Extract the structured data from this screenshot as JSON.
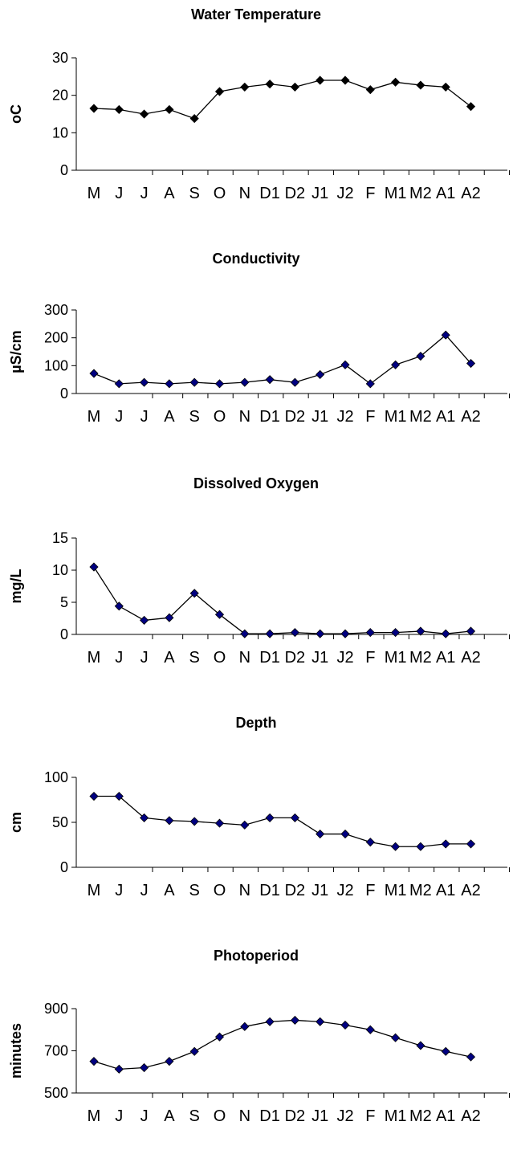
{
  "chart_data": [
    {
      "type": "line",
      "title": "Water Temperature",
      "xlabel": "",
      "ylabel": "oC",
      "ylim": [
        0,
        30
      ],
      "yticks": [
        "0",
        "10",
        "20",
        "30"
      ],
      "categories": [
        "M",
        "J",
        "J",
        "A",
        "S",
        "O",
        "N",
        "D1",
        "D2",
        "J1",
        "J2",
        "F",
        "M1",
        "M2",
        "A1",
        "A2"
      ],
      "values": [
        16.5,
        16.2,
        15,
        16.2,
        13.8,
        21,
        22.2,
        23,
        22.2,
        24,
        24,
        21.5,
        23.5,
        22.7,
        22.2,
        17
      ],
      "marker_color": "#000000",
      "line_color": "#000000",
      "grid": false
    },
    {
      "type": "line",
      "title": "Conductivity",
      "xlabel": "",
      "ylabel": "µS/cm",
      "ylim": [
        0,
        300
      ],
      "yticks": [
        "0",
        "100",
        "200",
        "300"
      ],
      "categories": [
        "M",
        "J",
        "J",
        "A",
        "S",
        "O",
        "N",
        "D1",
        "D2",
        "J1",
        "J2",
        "F",
        "M1",
        "M2",
        "A1",
        "A2"
      ],
      "values": [
        72,
        35,
        40,
        35,
        40,
        35,
        40,
        50,
        40,
        68,
        103,
        35,
        103,
        134,
        210,
        108
      ],
      "marker_color": "#000080",
      "line_color": "#000000",
      "grid": false
    },
    {
      "type": "line",
      "title": "Dissolved Oxygen",
      "xlabel": "",
      "ylabel": "mg/L",
      "ylim": [
        0,
        15
      ],
      "yticks": [
        "0",
        "5",
        "10",
        "15"
      ],
      "categories": [
        "M",
        "J",
        "J",
        "A",
        "S",
        "O",
        "N",
        "D1",
        "D2",
        "J1",
        "J2",
        "F",
        "M1",
        "M2",
        "A1",
        "A2"
      ],
      "values": [
        10.5,
        4.4,
        2.2,
        2.6,
        6.4,
        3.1,
        0.1,
        0.1,
        0.3,
        0.1,
        0.1,
        0.3,
        0.3,
        0.5,
        0.1,
        0.5
      ],
      "marker_color": "#000080",
      "line_color": "#000000",
      "grid": false
    },
    {
      "type": "line",
      "title": "Depth",
      "xlabel": "",
      "ylabel": "cm",
      "ylim": [
        0,
        100
      ],
      "yticks": [
        "0",
        "50",
        "100"
      ],
      "categories": [
        "M",
        "J",
        "J",
        "A",
        "S",
        "O",
        "N",
        "D1",
        "D2",
        "J1",
        "J2",
        "F",
        "M1",
        "M2",
        "A1",
        "A2"
      ],
      "values": [
        79,
        79,
        55,
        52,
        51,
        49,
        47,
        55,
        55,
        37,
        37,
        28,
        23,
        23,
        26,
        26
      ],
      "marker_color": "#000080",
      "line_color": "#000000",
      "grid": false
    },
    {
      "type": "line",
      "title": "Photoperiod",
      "xlabel": "",
      "ylabel": "minutes",
      "ylim": [
        500,
        900
      ],
      "yticks": [
        "500",
        "700",
        "900"
      ],
      "categories": [
        "M",
        "J",
        "J",
        "A",
        "S",
        "O",
        "N",
        "D1",
        "D2",
        "J1",
        "J2",
        "F",
        "M1",
        "M2",
        "A1",
        "A2"
      ],
      "values": [
        650,
        613,
        620,
        650,
        697,
        766,
        815,
        838,
        845,
        838,
        822,
        800,
        762,
        725,
        697,
        671
      ],
      "marker_color": "#000080",
      "line_color": "#000000",
      "grid": false
    }
  ]
}
